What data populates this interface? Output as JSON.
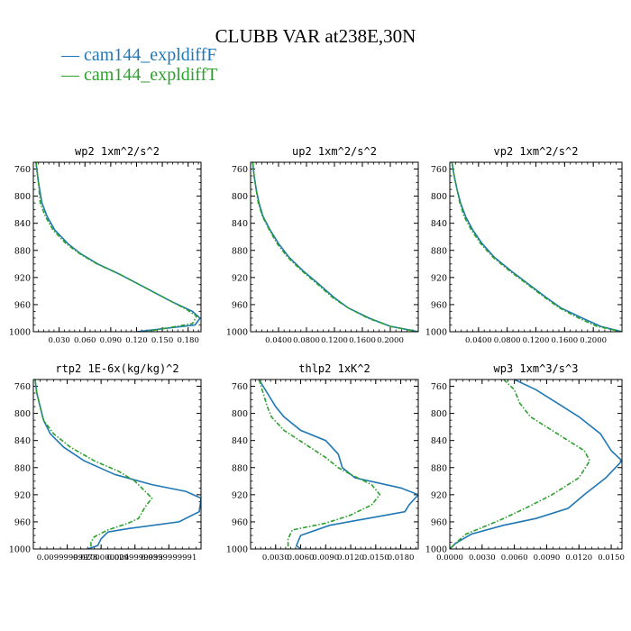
{
  "title": "CLUBB VAR at238E,30N",
  "legend": [
    {
      "label": "cam144_expldiffF",
      "color": "#1f77b4"
    },
    {
      "label": "cam144_expldiffT",
      "color": "#2ca02c"
    }
  ],
  "chart_data": [
    {
      "type": "line",
      "title": "wp2  1xm^2/s^2",
      "ylim": [
        1000,
        750
      ],
      "yticks": [
        760,
        800,
        840,
        880,
        920,
        960,
        1000
      ],
      "xlim": [
        0,
        0.195
      ],
      "xticks": [
        0.03,
        0.06,
        0.09,
        0.12,
        0.15,
        0.18
      ],
      "xticklabels": [
        "0.030",
        "0.060",
        "0.090",
        "0.120",
        "0.150",
        "0.180"
      ],
      "series": [
        {
          "color": "#1f77b4",
          "dashed": false,
          "points": [
            [
              0.003,
              750
            ],
            [
              0.004,
              760
            ],
            [
              0.006,
              780
            ],
            [
              0.01,
              810
            ],
            [
              0.016,
              830
            ],
            [
              0.025,
              850
            ],
            [
              0.04,
              870
            ],
            [
              0.055,
              885
            ],
            [
              0.075,
              900
            ],
            [
              0.1,
              915
            ],
            [
              0.13,
              935
            ],
            [
              0.16,
              955
            ],
            [
              0.185,
              970
            ],
            [
              0.194,
              980
            ],
            [
              0.188,
              990
            ],
            [
              0.12,
              1000
            ]
          ]
        },
        {
          "color": "#2ca02c",
          "dashed": true,
          "points": [
            [
              0.003,
              750
            ],
            [
              0.004,
              760
            ],
            [
              0.006,
              780
            ],
            [
              0.008,
              810
            ],
            [
              0.014,
              830
            ],
            [
              0.023,
              850
            ],
            [
              0.038,
              870
            ],
            [
              0.054,
              885
            ],
            [
              0.074,
              900
            ],
            [
              0.1,
              915
            ],
            [
              0.13,
              935
            ],
            [
              0.16,
              955
            ],
            [
              0.178,
              967
            ],
            [
              0.19,
              977
            ],
            [
              0.185,
              988
            ],
            [
              0.13,
              1000
            ]
          ]
        }
      ]
    },
    {
      "type": "line",
      "title": "up2  1xm^2/s^2",
      "ylim": [
        1000,
        750
      ],
      "yticks": [
        760,
        800,
        840,
        880,
        920,
        960,
        1000
      ],
      "xlim": [
        0,
        0.24
      ],
      "xticks": [
        0.04,
        0.08,
        0.12,
        0.16,
        0.2
      ],
      "xticklabels": [
        "0.0400",
        "0.0800",
        "0.1200",
        "0.1600",
        "0.2000"
      ],
      "series": [
        {
          "color": "#1f77b4",
          "dashed": false,
          "points": [
            [
              0.003,
              750
            ],
            [
              0.005,
              770
            ],
            [
              0.008,
              790
            ],
            [
              0.012,
              810
            ],
            [
              0.018,
              830
            ],
            [
              0.028,
              850
            ],
            [
              0.04,
              870
            ],
            [
              0.055,
              890
            ],
            [
              0.075,
              910
            ],
            [
              0.098,
              930
            ],
            [
              0.12,
              950
            ],
            [
              0.14,
              965
            ],
            [
              0.17,
              980
            ],
            [
              0.2,
              992
            ],
            [
              0.24,
              1000
            ]
          ]
        },
        {
          "color": "#2ca02c",
          "dashed": true,
          "points": [
            [
              0.003,
              750
            ],
            [
              0.005,
              770
            ],
            [
              0.008,
              790
            ],
            [
              0.011,
              810
            ],
            [
              0.017,
              830
            ],
            [
              0.027,
              850
            ],
            [
              0.038,
              870
            ],
            [
              0.053,
              890
            ],
            [
              0.073,
              910
            ],
            [
              0.096,
              930
            ],
            [
              0.118,
              950
            ],
            [
              0.14,
              965
            ],
            [
              0.168,
              980
            ],
            [
              0.2,
              992
            ],
            [
              0.24,
              1000
            ]
          ]
        }
      ]
    },
    {
      "type": "line",
      "title": "vp2  1xm^2/s^2",
      "ylim": [
        1000,
        750
      ],
      "yticks": [
        760,
        800,
        840,
        880,
        920,
        960,
        1000
      ],
      "xlim": [
        0,
        0.24
      ],
      "xticks": [
        0.04,
        0.08,
        0.12,
        0.16,
        0.2
      ],
      "xticklabels": [
        "0.0400",
        "0.0800",
        "0.1200",
        "0.1600",
        "0.2000"
      ],
      "series": [
        {
          "color": "#1f77b4",
          "dashed": false,
          "points": [
            [
              0.003,
              750
            ],
            [
              0.006,
              770
            ],
            [
              0.01,
              790
            ],
            [
              0.015,
              810
            ],
            [
              0.022,
              830
            ],
            [
              0.032,
              850
            ],
            [
              0.045,
              870
            ],
            [
              0.062,
              890
            ],
            [
              0.085,
              910
            ],
            [
              0.11,
              930
            ],
            [
              0.135,
              950
            ],
            [
              0.155,
              965
            ],
            [
              0.185,
              980
            ],
            [
              0.21,
              992
            ],
            [
              0.24,
              1000
            ]
          ]
        },
        {
          "color": "#2ca02c",
          "dashed": true,
          "points": [
            [
              0.003,
              750
            ],
            [
              0.006,
              770
            ],
            [
              0.01,
              790
            ],
            [
              0.014,
              810
            ],
            [
              0.02,
              830
            ],
            [
              0.03,
              850
            ],
            [
              0.043,
              870
            ],
            [
              0.06,
              890
            ],
            [
              0.083,
              910
            ],
            [
              0.108,
              930
            ],
            [
              0.133,
              950
            ],
            [
              0.153,
              965
            ],
            [
              0.18,
              980
            ],
            [
              0.205,
              992
            ],
            [
              0.24,
              1000
            ]
          ]
        }
      ]
    },
    {
      "type": "line",
      "title": "rtp2  1E-6x(kg/kg)^2",
      "ylim": [
        1000,
        750
      ],
      "yticks": [
        760,
        800,
        840,
        880,
        920,
        960,
        1000
      ],
      "xlim": [
        0,
        0.0495
      ],
      "xticks": [
        0.01,
        0.02,
        0.03,
        0.04
      ],
      "xticklabels": [
        "0.00999999978",
        "0.0200000004",
        "0.0299999993",
        "0.0399999991"
      ],
      "series": [
        {
          "color": "#1f77b4",
          "dashed": false,
          "points": [
            [
              0.0005,
              750
            ],
            [
              0.001,
              770
            ],
            [
              0.002,
              790
            ],
            [
              0.003,
              810
            ],
            [
              0.005,
              830
            ],
            [
              0.009,
              850
            ],
            [
              0.015,
              870
            ],
            [
              0.024,
              890
            ],
            [
              0.035,
              905
            ],
            [
              0.045,
              915
            ],
            [
              0.0495,
              925
            ],
            [
              0.049,
              945
            ],
            [
              0.043,
              960
            ],
            [
              0.028,
              970
            ],
            [
              0.022,
              975
            ],
            [
              0.02,
              985
            ],
            [
              0.019,
              995
            ],
            [
              0.016,
              1000
            ]
          ]
        },
        {
          "color": "#2ca02c",
          "dashed": true,
          "points": [
            [
              0.0005,
              750
            ],
            [
              0.001,
              770
            ],
            [
              0.002,
              790
            ],
            [
              0.003,
              810
            ],
            [
              0.006,
              830
            ],
            [
              0.011,
              850
            ],
            [
              0.018,
              870
            ],
            [
              0.025,
              885
            ],
            [
              0.03,
              900
            ],
            [
              0.033,
              915
            ],
            [
              0.035,
              925
            ],
            [
              0.033,
              938
            ],
            [
              0.031,
              955
            ],
            [
              0.028,
              962
            ],
            [
              0.022,
              972
            ],
            [
              0.018,
              982
            ],
            [
              0.017,
              990
            ],
            [
              0.017,
              1000
            ]
          ]
        }
      ]
    },
    {
      "type": "line",
      "title": "thlp2  1xK^2",
      "ylim": [
        1000,
        750
      ],
      "yticks": [
        760,
        800,
        840,
        880,
        920,
        960,
        1000
      ],
      "xlim": [
        0,
        0.0201
      ],
      "xticks": [
        0.003,
        0.006,
        0.009,
        0.012,
        0.015,
        0.018
      ],
      "xticklabels": [
        "0.0030",
        "0.0060",
        "0.0090",
        "0.0120",
        "0.0150",
        "0.0180"
      ],
      "series": [
        {
          "color": "#1f77b4",
          "dashed": false,
          "points": [
            [
              0.001,
              750
            ],
            [
              0.002,
              770
            ],
            [
              0.003,
              790
            ],
            [
              0.004,
              805
            ],
            [
              0.006,
              825
            ],
            [
              0.009,
              840
            ],
            [
              0.0105,
              860
            ],
            [
              0.011,
              880
            ],
            [
              0.0125,
              895
            ],
            [
              0.018,
              910
            ],
            [
              0.0201,
              920
            ],
            [
              0.019,
              935
            ],
            [
              0.0185,
              945
            ],
            [
              0.014,
              955
            ],
            [
              0.0095,
              965
            ],
            [
              0.006,
              980
            ],
            [
              0.0055,
              995
            ],
            [
              0.006,
              1000
            ]
          ]
        },
        {
          "color": "#2ca02c",
          "dashed": true,
          "points": [
            [
              0.001,
              750
            ],
            [
              0.0015,
              770
            ],
            [
              0.002,
              790
            ],
            [
              0.0025,
              805
            ],
            [
              0.004,
              825
            ],
            [
              0.0065,
              845
            ],
            [
              0.009,
              865
            ],
            [
              0.0105,
              880
            ],
            [
              0.012,
              890
            ],
            [
              0.0145,
              905
            ],
            [
              0.0155,
              920
            ],
            [
              0.0145,
              935
            ],
            [
              0.012,
              950
            ],
            [
              0.009,
              962
            ],
            [
              0.005,
              972
            ],
            [
              0.0045,
              985
            ],
            [
              0.0045,
              995
            ],
            [
              0.0045,
              1000
            ]
          ]
        }
      ]
    },
    {
      "type": "line",
      "title": "wp3  1xm^3/s^3",
      "ylim": [
        1000,
        750
      ],
      "yticks": [
        760,
        800,
        840,
        880,
        920,
        960,
        1000
      ],
      "xlim": [
        0,
        0.016
      ],
      "xticks": [
        0.0,
        0.003,
        0.006,
        0.009,
        0.012,
        0.015
      ],
      "xticklabels": [
        "0.0000",
        "0.0030",
        "0.0060",
        "0.0090",
        "0.0120",
        "0.0150"
      ],
      "series": [
        {
          "color": "#1f77b4",
          "dashed": false,
          "points": [
            [
              0.006,
              750
            ],
            [
              0.008,
              765
            ],
            [
              0.01,
              785
            ],
            [
              0.012,
              805
            ],
            [
              0.014,
              830
            ],
            [
              0.015,
              855
            ],
            [
              0.016,
              870
            ],
            [
              0.0145,
              895
            ],
            [
              0.0125,
              920
            ],
            [
              0.011,
              940
            ],
            [
              0.008,
              955
            ],
            [
              0.005,
              965
            ],
            [
              0.002,
              978
            ],
            [
              0.0005,
              992
            ],
            [
              0.0,
              1000
            ]
          ]
        },
        {
          "color": "#2ca02c",
          "dashed": true,
          "points": [
            [
              0.005,
              750
            ],
            [
              0.006,
              765
            ],
            [
              0.0065,
              785
            ],
            [
              0.0075,
              805
            ],
            [
              0.01,
              830
            ],
            [
              0.0125,
              855
            ],
            [
              0.013,
              870
            ],
            [
              0.012,
              895
            ],
            [
              0.0095,
              920
            ],
            [
              0.007,
              940
            ],
            [
              0.005,
              955
            ],
            [
              0.0035,
              965
            ],
            [
              0.0015,
              978
            ],
            [
              0.0005,
              992
            ],
            [
              0.0,
              1000
            ]
          ]
        }
      ]
    }
  ]
}
